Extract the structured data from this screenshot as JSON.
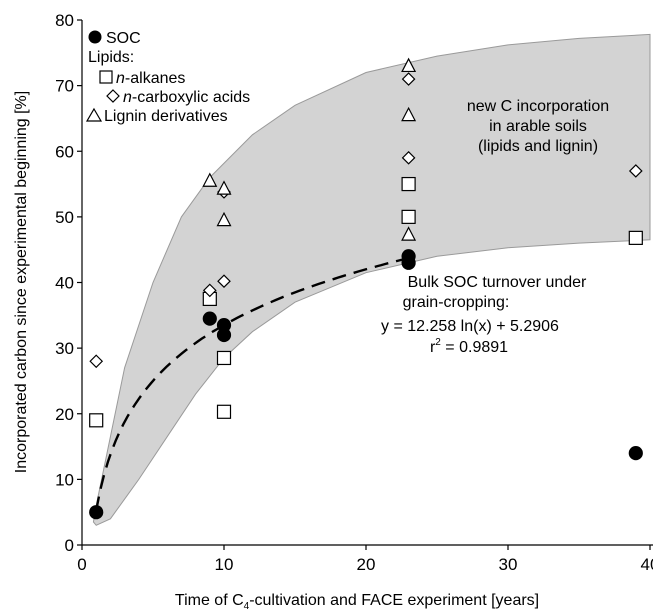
{
  "chart_data": {
    "type": "scatter",
    "xlabel_parts": [
      "Time of C",
      "4",
      "-cultivation and FACE experiment [years]"
    ],
    "ylabel": "Incorporated carbon since experimental beginning [%]",
    "xlim": [
      0,
      40
    ],
    "ylim": [
      0,
      80
    ],
    "xticks": [
      "0",
      "10",
      "20",
      "30",
      "40"
    ],
    "yticks": [
      "0",
      "10",
      "20",
      "30",
      "40",
      "50",
      "60",
      "70",
      "80"
    ],
    "grid": false,
    "legend_position": "top-left",
    "legend": {
      "soc": "SOC",
      "lipids_heading": "Lipids:",
      "alkanes_prefix": "n",
      "alkanes_suffix": "-alkanes",
      "carboxylic_prefix": "n",
      "carboxylic_suffix": "-carboxylic acids",
      "lignin": "Lignin derivatives"
    },
    "annotations": {
      "band_label": [
        "new C incorporation",
        "in arable soils",
        "(lipids and lignin)"
      ],
      "fit_line1": "Bulk SOC turnover under",
      "fit_line2": "grain-cropping:",
      "fit_eq": "y = 12.258 ln(x) + 5.2906",
      "r2_prefix": "r",
      "r2_sup": "2",
      "r2_value": " = 0.9891"
    },
    "band": {
      "upper": [
        [
          1,
          6
        ],
        [
          3,
          27
        ],
        [
          5,
          40
        ],
        [
          7,
          50
        ],
        [
          9,
          56
        ],
        [
          12,
          62.5
        ],
        [
          15,
          67
        ],
        [
          20,
          72
        ],
        [
          25,
          74.5
        ],
        [
          30,
          76.2
        ],
        [
          35,
          77.2
        ],
        [
          40,
          77.8
        ]
      ],
      "lower": [
        [
          40,
          46.5
        ],
        [
          35,
          46
        ],
        [
          30,
          45.3
        ],
        [
          25,
          44
        ],
        [
          20,
          41.5
        ],
        [
          15,
          37
        ],
        [
          12,
          32.5
        ],
        [
          10,
          28.5
        ],
        [
          8,
          23
        ],
        [
          6,
          16.5
        ],
        [
          4,
          10
        ],
        [
          2,
          4
        ],
        [
          1,
          3
        ],
        [
          0.8,
          3.5
        ]
      ]
    },
    "fit": {
      "a": 12.258,
      "b": 5.2906,
      "x_start": 1.0,
      "x_end": 23
    },
    "series": [
      {
        "name": "SOC",
        "marker": "circle",
        "points": [
          [
            1,
            5
          ],
          [
            9,
            34.5
          ],
          [
            10,
            33.5
          ],
          [
            10,
            32
          ],
          [
            23,
            44
          ],
          [
            23,
            43
          ],
          [
            39,
            14
          ]
        ]
      },
      {
        "name": "n-alkanes",
        "marker": "square",
        "points": [
          [
            1,
            19
          ],
          [
            9,
            37.5
          ],
          [
            10,
            28.5
          ],
          [
            10,
            20.3
          ],
          [
            23,
            55
          ],
          [
            23,
            50
          ],
          [
            39,
            46.8
          ]
        ]
      },
      {
        "name": "n-carboxylic acids",
        "marker": "diamond",
        "points": [
          [
            1,
            28
          ],
          [
            9,
            38.8
          ],
          [
            10,
            53.8
          ],
          [
            10,
            40.2
          ],
          [
            23,
            71
          ],
          [
            23,
            59
          ],
          [
            39,
            57
          ]
        ]
      },
      {
        "name": "Lignin derivatives",
        "marker": "triangle",
        "points": [
          [
            9,
            55.5
          ],
          [
            10,
            54.3
          ],
          [
            10,
            49.5
          ],
          [
            23,
            73
          ],
          [
            23,
            65.5
          ],
          [
            23,
            47.3
          ]
        ]
      }
    ],
    "colors": {
      "band": "#d3d3d3",
      "band_edge": "#9a9a9a",
      "marker_fill_soc": "#000000",
      "marker_fill_open": "#ffffff"
    }
  }
}
